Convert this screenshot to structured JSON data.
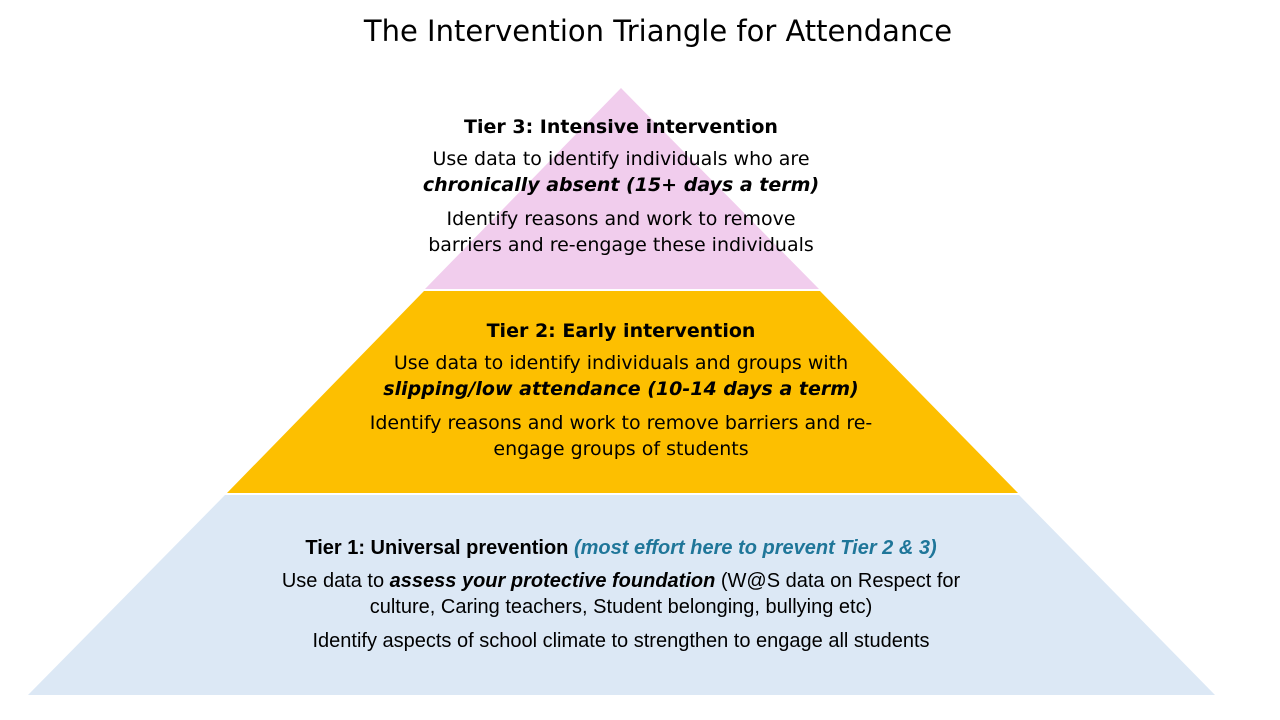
{
  "title": "The Intervention Triangle for Attendance",
  "colors": {
    "tier3": "#f1cded",
    "tier2": "#fdbf00",
    "tier1": "#dce8f5",
    "note": "#1f7699"
  },
  "tiers": {
    "tier3": {
      "heading": "Tier 3: Intensive intervention",
      "p1_line1": "Use data to identify individuals who are",
      "p1_emph": "chronically absent  (15+ days a term)",
      "p2_line1": "Identify reasons and work to remove",
      "p2_line2": "barriers and re-engage these individuals"
    },
    "tier2": {
      "heading": "Tier 2: Early intervention",
      "p1_line1": "Use data to identify individuals and groups with",
      "p1_emph": "slipping/low attendance (10-14 days a term)",
      "p2_line1": "Identify reasons and work to remove barriers and re-",
      "p2_line2": "engage groups of students"
    },
    "tier1": {
      "heading": "Tier 1: Universal prevention",
      "heading_note": "(most effort here to prevent Tier 2 & 3)",
      "p1_pre": "Use data to ",
      "p1_emph": "assess your protective foundation",
      "p1_post": " (W@S data on Respect for",
      "p1_line2": "culture, Caring teachers, Student belonging, bullying etc)",
      "p2_line1": "Identify aspects of school climate to strengthen to engage all students"
    }
  }
}
